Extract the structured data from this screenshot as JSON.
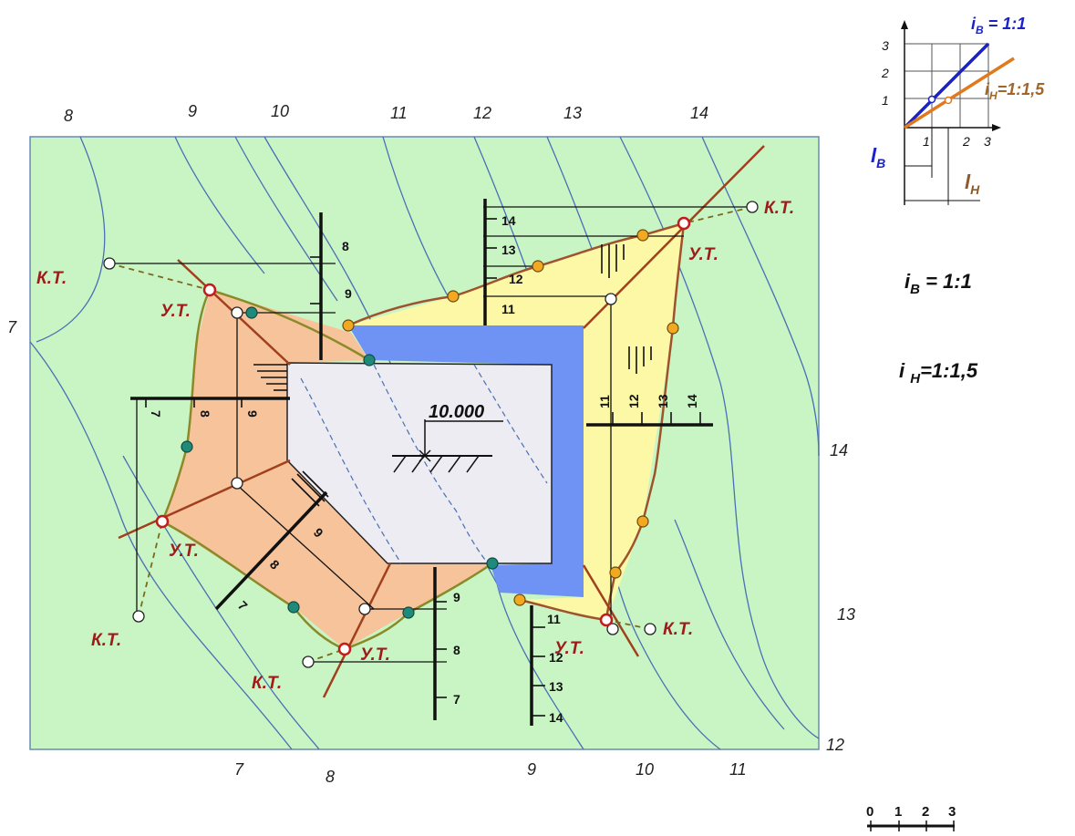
{
  "contour_labels": {
    "top": [
      "8",
      "9",
      "10",
      "11",
      "12",
      "13",
      "14"
    ],
    "left": [
      "7"
    ],
    "right": [
      "14",
      "13",
      "12"
    ],
    "bottom": [
      "7",
      "8",
      "9",
      "10",
      "11"
    ]
  },
  "markers": {
    "kt": "К.Т.",
    "ut": "У.Т."
  },
  "elevation": "10.000",
  "ticks": {
    "cut_north": [
      "14",
      "13",
      "12",
      "11"
    ],
    "cut_east": [
      "11",
      "12",
      "13",
      "14"
    ],
    "cut_south": [
      "11",
      "12",
      "13",
      "14"
    ],
    "fill_north": [
      "8",
      "9"
    ],
    "fill_west": [
      "7",
      "8",
      "9"
    ],
    "fill_sw": [
      "9",
      "8",
      "7"
    ],
    "fill_south": [
      "9",
      "8",
      "7"
    ]
  },
  "legend": {
    "graph_title": "i",
    "graph_title_sub": "B",
    "graph_title_val": " = 1:1",
    "graph_h": "i",
    "graph_h_sub": "H",
    "graph_h_val": "=1:1,5",
    "y_ticks": [
      "3",
      "2",
      "1"
    ],
    "x_ticks": [
      "1",
      "2",
      "3"
    ],
    "lb": "l",
    "lb_sub": "B",
    "lh": "l",
    "lh_sub": "H",
    "slope_b": "i",
    "slope_b_sub": "B",
    "slope_b_val": " = 1:1",
    "slope_h": "i ",
    "slope_h_sub": "H",
    "slope_h_val": "=1:1,5"
  },
  "scale_bar": [
    "0",
    "1",
    "2",
    "3"
  ],
  "colors": {
    "terrain": "#c9f5c4",
    "contour": "#4a6fb5",
    "fill_area": "#f7c39a",
    "cut_area": "#fdf8a6",
    "site": "#ececf2",
    "water": "#6f93f4",
    "boundary": "#a0523a",
    "kt_label": "#9e1b1b",
    "slope_b": "#1a22c8",
    "slope_h": "#e07a1e"
  }
}
